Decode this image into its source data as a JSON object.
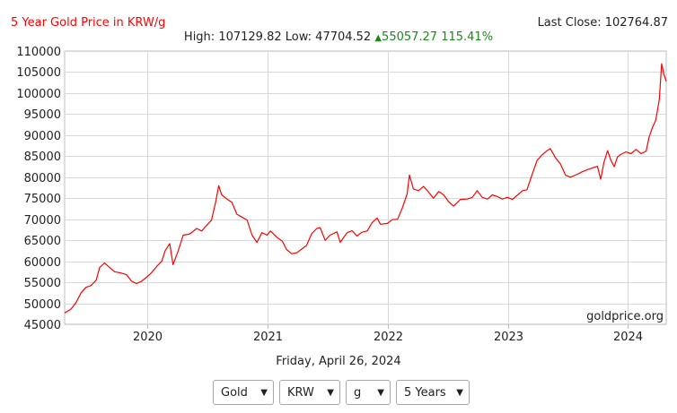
{
  "header": {
    "title": "5 Year Gold Price in KRW/g",
    "last_close": "Last Close: 102764.87",
    "high": "High: 107129.82",
    "low": "Low: 47704.52",
    "change": "55057.27 115.41%",
    "change_color": "#1a8a1a"
  },
  "footer": {
    "date": "Friday, April 26, 2024"
  },
  "controls": {
    "metal": "Gold",
    "currency": "KRW",
    "unit": "g",
    "period": "5 Years"
  },
  "chart_data": {
    "type": "line",
    "title": "5 Year Gold Price in KRW/g",
    "watermark": "goldprice.org",
    "line_color": "#ff0000",
    "grid": true,
    "ylim": [
      45000,
      110000
    ],
    "yticks": [
      45000,
      50000,
      55000,
      60000,
      65000,
      70000,
      75000,
      80000,
      85000,
      90000,
      95000,
      100000,
      105000,
      110000
    ],
    "xlim": [
      "2019-04-26",
      "2024-04-26"
    ],
    "xticks": [
      {
        "label": "2020",
        "date": "2020-01-01"
      },
      {
        "label": "2021",
        "date": "2021-01-01"
      },
      {
        "label": "2022",
        "date": "2022-01-01"
      },
      {
        "label": "2023",
        "date": "2023-01-01"
      },
      {
        "label": "2024",
        "date": "2024-01-01"
      }
    ],
    "series": [
      {
        "points": [
          [
            "2019-04-26",
            47700
          ],
          [
            "2019-05-15",
            48600
          ],
          [
            "2019-05-31",
            50200
          ],
          [
            "2019-06-15",
            52500
          ],
          [
            "2019-06-30",
            53800
          ],
          [
            "2019-07-15",
            54200
          ],
          [
            "2019-07-31",
            55500
          ],
          [
            "2019-08-10",
            58500
          ],
          [
            "2019-08-25",
            59600
          ],
          [
            "2019-09-05",
            58800
          ],
          [
            "2019-09-25",
            57500
          ],
          [
            "2019-10-15",
            57200
          ],
          [
            "2019-10-31",
            56800
          ],
          [
            "2019-11-15",
            55300
          ],
          [
            "2019-11-30",
            54700
          ],
          [
            "2019-12-15",
            55200
          ],
          [
            "2019-12-31",
            56200
          ],
          [
            "2020-01-15",
            57300
          ],
          [
            "2020-01-31",
            58800
          ],
          [
            "2020-02-15",
            60000
          ],
          [
            "2020-02-25",
            62500
          ],
          [
            "2020-03-10",
            64200
          ],
          [
            "2020-03-20",
            59200
          ],
          [
            "2020-04-05",
            62500
          ],
          [
            "2020-04-20",
            66200
          ],
          [
            "2020-05-10",
            66500
          ],
          [
            "2020-05-31",
            67800
          ],
          [
            "2020-06-15",
            67200
          ],
          [
            "2020-06-30",
            68500
          ],
          [
            "2020-07-15",
            69800
          ],
          [
            "2020-07-28",
            74200
          ],
          [
            "2020-08-06",
            78000
          ],
          [
            "2020-08-15",
            75800
          ],
          [
            "2020-08-31",
            74800
          ],
          [
            "2020-09-15",
            74000
          ],
          [
            "2020-09-30",
            71200
          ],
          [
            "2020-10-15",
            70500
          ],
          [
            "2020-10-31",
            69800
          ],
          [
            "2020-11-15",
            66200
          ],
          [
            "2020-11-30",
            64500
          ],
          [
            "2020-12-15",
            66800
          ],
          [
            "2020-12-31",
            66200
          ],
          [
            "2021-01-10",
            67200
          ],
          [
            "2021-01-31",
            65600
          ],
          [
            "2021-02-15",
            64800
          ],
          [
            "2021-02-28",
            62800
          ],
          [
            "2021-03-15",
            61800
          ],
          [
            "2021-03-31",
            62000
          ],
          [
            "2021-04-15",
            62900
          ],
          [
            "2021-04-30",
            63800
          ],
          [
            "2021-05-15",
            66500
          ],
          [
            "2021-05-31",
            67800
          ],
          [
            "2021-06-10",
            68000
          ],
          [
            "2021-06-25",
            65000
          ],
          [
            "2021-07-10",
            66200
          ],
          [
            "2021-07-31",
            67000
          ],
          [
            "2021-08-10",
            64500
          ],
          [
            "2021-08-31",
            66800
          ],
          [
            "2021-09-15",
            67300
          ],
          [
            "2021-09-30",
            66000
          ],
          [
            "2021-10-15",
            66900
          ],
          [
            "2021-10-31",
            67200
          ],
          [
            "2021-11-15",
            69200
          ],
          [
            "2021-11-30",
            70300
          ],
          [
            "2021-12-10",
            68800
          ],
          [
            "2021-12-31",
            69000
          ],
          [
            "2022-01-15",
            69900
          ],
          [
            "2022-01-31",
            70000
          ],
          [
            "2022-02-15",
            72800
          ],
          [
            "2022-03-01",
            76000
          ],
          [
            "2022-03-08",
            80500
          ],
          [
            "2022-03-20",
            77200
          ],
          [
            "2022-04-05",
            76800
          ],
          [
            "2022-04-20",
            77800
          ],
          [
            "2022-05-05",
            76500
          ],
          [
            "2022-05-20",
            75000
          ],
          [
            "2022-06-05",
            76600
          ],
          [
            "2022-06-20",
            75800
          ],
          [
            "2022-07-05",
            74200
          ],
          [
            "2022-07-20",
            73100
          ],
          [
            "2022-08-10",
            74700
          ],
          [
            "2022-08-31",
            74800
          ],
          [
            "2022-09-15",
            75200
          ],
          [
            "2022-09-30",
            76800
          ],
          [
            "2022-10-15",
            75200
          ],
          [
            "2022-10-31",
            74800
          ],
          [
            "2022-11-15",
            75800
          ],
          [
            "2022-11-30",
            75400
          ],
          [
            "2022-12-15",
            74800
          ],
          [
            "2022-12-31",
            75200
          ],
          [
            "2023-01-15",
            74700
          ],
          [
            "2023-01-31",
            75800
          ],
          [
            "2023-02-15",
            76800
          ],
          [
            "2023-02-28",
            77000
          ],
          [
            "2023-03-15",
            80500
          ],
          [
            "2023-03-31",
            84000
          ],
          [
            "2023-04-15",
            85300
          ],
          [
            "2023-04-30",
            86300
          ],
          [
            "2023-05-10",
            86800
          ],
          [
            "2023-05-25",
            84700
          ],
          [
            "2023-06-10",
            83100
          ],
          [
            "2023-06-25",
            80500
          ],
          [
            "2023-07-10",
            80000
          ],
          [
            "2023-07-31",
            80700
          ],
          [
            "2023-08-15",
            81300
          ],
          [
            "2023-08-31",
            81800
          ],
          [
            "2023-09-15",
            82200
          ],
          [
            "2023-09-30",
            82600
          ],
          [
            "2023-10-10",
            79500
          ],
          [
            "2023-10-20",
            83600
          ],
          [
            "2023-10-31",
            86300
          ],
          [
            "2023-11-10",
            84000
          ],
          [
            "2023-11-20",
            82500
          ],
          [
            "2023-11-30",
            84800
          ],
          [
            "2023-12-10",
            85400
          ],
          [
            "2023-12-25",
            86000
          ],
          [
            "2024-01-10",
            85600
          ],
          [
            "2024-01-25",
            86600
          ],
          [
            "2024-02-10",
            85600
          ],
          [
            "2024-02-25",
            86200
          ],
          [
            "2024-03-05",
            89500
          ],
          [
            "2024-03-15",
            91800
          ],
          [
            "2024-03-25",
            93500
          ],
          [
            "2024-04-05",
            98500
          ],
          [
            "2024-04-12",
            107000
          ],
          [
            "2024-04-19",
            104500
          ],
          [
            "2024-04-26",
            102800
          ]
        ]
      }
    ]
  }
}
